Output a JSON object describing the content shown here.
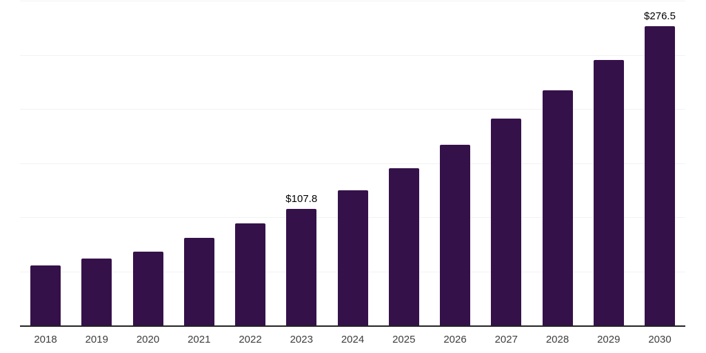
{
  "chart_data": {
    "type": "bar",
    "title": "",
    "xlabel": "",
    "ylabel": "",
    "categories": [
      "2018",
      "2019",
      "2020",
      "2021",
      "2022",
      "2023",
      "2024",
      "2025",
      "2026",
      "2027",
      "2028",
      "2029",
      "2030"
    ],
    "values": [
      55.2,
      62.1,
      68.3,
      81.2,
      94.5,
      107.8,
      125.0,
      145.0,
      166.7,
      191.0,
      217.5,
      245.5,
      276.5
    ],
    "data_labels": {
      "2023": "$107.8",
      "2030": "$276.5"
    },
    "ylim": [
      0,
      300
    ],
    "gridline_step": 50,
    "grid": true,
    "legend": "none",
    "colors": {
      "bar": "#35114A",
      "gridline": "#f2f2f2",
      "axis_line": "#222222",
      "tick_label": "#3d3d3d",
      "data_label": "#000000",
      "background": "#ffffff"
    }
  }
}
